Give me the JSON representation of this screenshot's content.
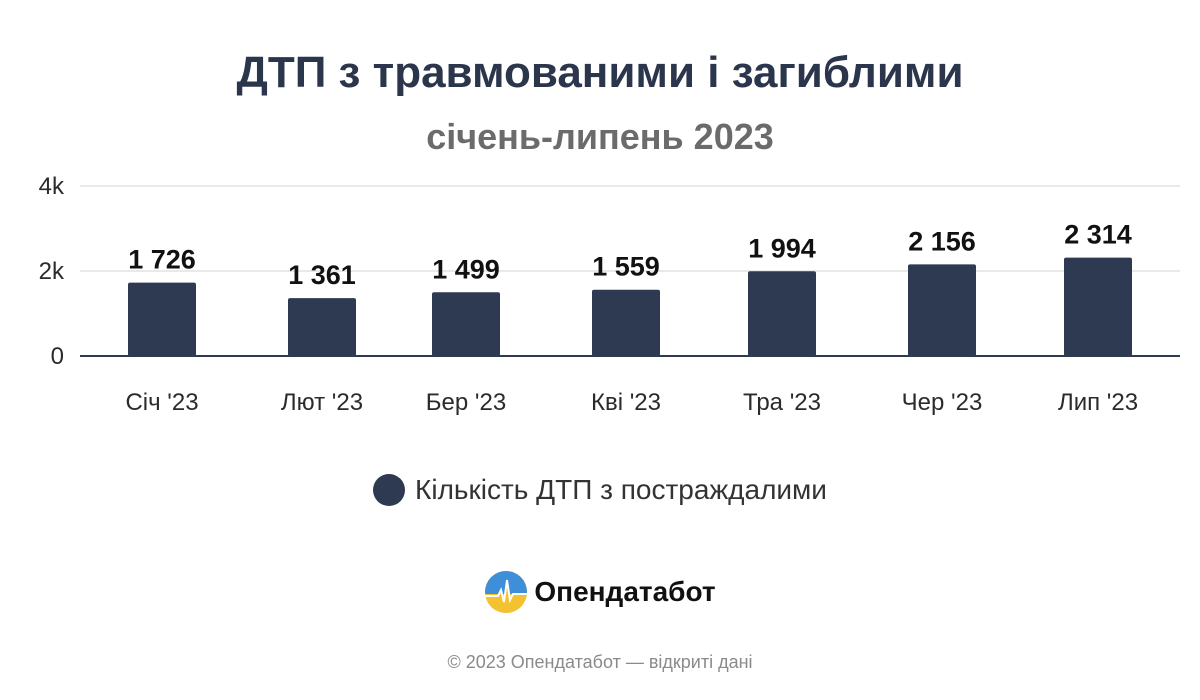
{
  "chart_data": {
    "type": "bar",
    "title": "ДТП з травмованими і загиблими",
    "subtitle": "січень-липень 2023",
    "categories": [
      "Січ '23",
      "Лют '23",
      "Бер '23",
      "Кві '23",
      "Тра '23",
      "Чер '23",
      "Лип '23"
    ],
    "series": [
      {
        "name": "Кількість ДТП з постраждалими",
        "values": [
          1726,
          1361,
          1499,
          1559,
          1994,
          2156,
          2314
        ],
        "data_labels": [
          "1 726",
          "1 361",
          "1 499",
          "1 559",
          "1 994",
          "2 156",
          "2 314"
        ],
        "color": "#2e3a52"
      }
    ],
    "ylim": [
      0,
      4000
    ],
    "yticks": [
      0,
      2000,
      4000
    ],
    "ytick_labels": [
      "0",
      "2k",
      "4k"
    ],
    "grid": true,
    "legend_position": "bottom"
  },
  "brand": {
    "name": "Опендатабот",
    "logo_icon": "sun-field-logo-icon"
  },
  "footer": {
    "text": "© 2023 Опендатабот — відкриті дані"
  }
}
